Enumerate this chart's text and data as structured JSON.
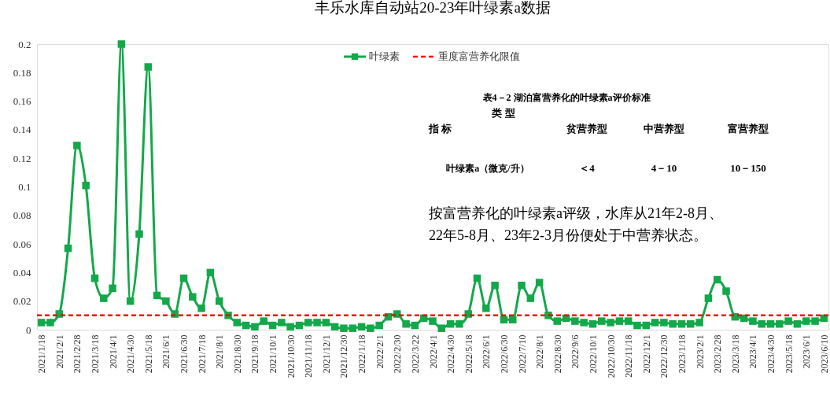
{
  "chart_data": {
    "type": "line",
    "title": "丰乐水库自动站20-23年叶绿素a数据",
    "categories": [
      "2021/1/18",
      null,
      "2021/2/1",
      null,
      "2021/2/28",
      null,
      "2021/3/18",
      null,
      "2021/4/1",
      null,
      "2021/4/30",
      null,
      "2021/5/18",
      null,
      "2021/6/1",
      null,
      "2021/6/30",
      null,
      "2021/7/18",
      null,
      "2021/8/1",
      null,
      "2021/8/30",
      null,
      "2021/9/18",
      null,
      "2021/10/1",
      null,
      "2021/10/30",
      null,
      "2021/11/18",
      null,
      "2021/12/1",
      null,
      "2021/12/30",
      null,
      "2022/1/18",
      null,
      "2022/2/1",
      null,
      "2022/2/30",
      null,
      "2022/3/22",
      null,
      "2022/4/1",
      null,
      "2022/4/30",
      null,
      "2022/5/18",
      null,
      "2022/6/1",
      null,
      "2022/6/30",
      null,
      "2022/7/10",
      null,
      "2022/8/1",
      null,
      "2022/8/30",
      null,
      "2022/9/6",
      null,
      "2022/10/1",
      null,
      "2022/10/30",
      null,
      "2022/11/18",
      null,
      "2022/12/1",
      null,
      "2022/12/30",
      null,
      "2023/1/18",
      null,
      "2023/2/1",
      null,
      "2023/2/28",
      null,
      "2023/3/18",
      null,
      "2023/4/1",
      null,
      "2023/4/30",
      null,
      "2023/5/18",
      null,
      "2023/6/1",
      null,
      "2023/6/10"
    ],
    "series": [
      {
        "name": "叶绿素",
        "color": "#13a84a",
        "values": [
          0.005,
          0.005,
          0.011,
          0.057,
          0.129,
          0.101,
          0.036,
          0.022,
          0.029,
          0.2,
          0.02,
          0.067,
          0.184,
          0.024,
          0.02,
          0.011,
          0.036,
          0.023,
          0.015,
          0.04,
          0.02,
          0.01,
          0.005,
          0.003,
          0.002,
          0.006,
          0.003,
          0.005,
          0.002,
          0.003,
          0.005,
          0.005,
          0.005,
          0.002,
          0.001,
          0.001,
          0.002,
          0.001,
          0.003,
          0.009,
          0.011,
          0.004,
          0.003,
          0.008,
          0.006,
          0.001,
          0.004,
          0.004,
          0.011,
          0.036,
          0.015,
          0.031,
          0.007,
          0.007,
          0.031,
          0.022,
          0.033,
          0.01,
          0.006,
          0.008,
          0.006,
          0.005,
          0.004,
          0.006,
          0.005,
          0.006,
          0.006,
          0.003,
          0.003,
          0.005,
          0.005,
          0.004,
          0.004,
          0.004,
          0.005,
          0.022,
          0.035,
          0.027,
          0.009,
          0.008,
          0.006,
          0.004,
          0.004,
          0.004,
          0.006,
          0.004,
          0.006,
          0.006,
          0.008
        ]
      }
    ],
    "ylim": [
      0,
      0.2
    ],
    "yticks": [
      0,
      0.02,
      0.04,
      0.06,
      0.08,
      0.1,
      0.12,
      0.14,
      0.16,
      0.18,
      0.2
    ],
    "ref_lines": [
      {
        "axis": "y",
        "value": 0.01,
        "label": "重度富营养化限值",
        "color": "#ff0000",
        "line_style": "dashed"
      }
    ],
    "marker": "square",
    "grid": false,
    "legend": "top",
    "annotations": [
      "表4－2 湖泊富营养化的叶绿素a评价标准",
      "类 型",
      "指 标",
      "贫营养型",
      "中营养型",
      "富营养型",
      "叶绿素a（微克/升）",
      "＜4",
      "4－10",
      "10－150",
      "按富营养化的叶绿素a评级，水库从21年2-8月、\n22年5-8月、23年2-3月份便处于中营养状态。"
    ]
  }
}
